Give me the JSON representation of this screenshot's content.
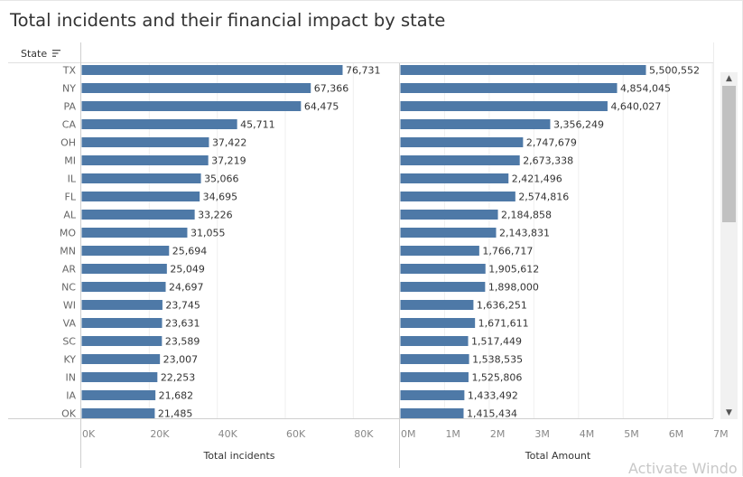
{
  "title": "Total incidents and their financial impact by state",
  "header": {
    "state_label": "State"
  },
  "chart_data": [
    {
      "type": "bar",
      "orientation": "horizontal",
      "categories": [
        "TX",
        "NY",
        "PA",
        "CA",
        "OH",
        "MI",
        "IL",
        "FL",
        "AL",
        "MO",
        "MN",
        "AR",
        "NC",
        "WI",
        "VA",
        "SC",
        "KY",
        "IN",
        "IA",
        "OK"
      ],
      "values": [
        76731,
        67366,
        64475,
        45711,
        37422,
        37219,
        35066,
        34695,
        33226,
        31055,
        25694,
        25049,
        24697,
        23745,
        23631,
        23589,
        23007,
        22253,
        21682,
        21485
      ],
      "value_labels": [
        "76,731",
        "67,366",
        "64,475",
        "45,711",
        "37,422",
        "37,219",
        "35,066",
        "34,695",
        "33,226",
        "31,055",
        "25,694",
        "25,049",
        "24,697",
        "23,745",
        "23,631",
        "23,589",
        "23,007",
        "22,253",
        "21,682",
        "21,485"
      ],
      "xlabel": "Total incidents",
      "xlim": [
        0,
        90000
      ],
      "ticks": [
        0,
        20000,
        40000,
        60000,
        80000
      ],
      "tick_labels": [
        "0K",
        "20K",
        "40K",
        "60K",
        "80K"
      ],
      "color": "#4e79a7",
      "grid": true
    },
    {
      "type": "bar",
      "orientation": "horizontal",
      "categories": [
        "TX",
        "NY",
        "PA",
        "CA",
        "OH",
        "MI",
        "IL",
        "FL",
        "AL",
        "MO",
        "MN",
        "AR",
        "NC",
        "WI",
        "VA",
        "SC",
        "KY",
        "IN",
        "IA",
        "OK"
      ],
      "values": [
        5500552,
        4854045,
        4640027,
        3356249,
        2747679,
        2673338,
        2421496,
        2574816,
        2184858,
        2143831,
        1766717,
        1905612,
        1898000,
        1636251,
        1671611,
        1517449,
        1538535,
        1525806,
        1433492,
        1415434
      ],
      "value_labels": [
        "5,500,552",
        "4,854,045",
        "4,640,027",
        "3,356,249",
        "2,747,679",
        "2,673,338",
        "2,421,496",
        "2,574,816",
        "2,184,858",
        "2,143,831",
        "1,766,717",
        "1,905,612",
        "1,898,000",
        "1,636,251",
        "1,671,611",
        "1,517,449",
        "1,538,535",
        "1,525,806",
        "1,433,492",
        "1,415,434"
      ],
      "xlabel": "Total Amount",
      "xlim": [
        0,
        7000000
      ],
      "ticks": [
        0,
        1000000,
        2000000,
        3000000,
        4000000,
        5000000,
        6000000,
        7000000
      ],
      "tick_labels": [
        "0M",
        "1M",
        "2M",
        "3M",
        "4M",
        "5M",
        "6M",
        "7M"
      ],
      "color": "#4e79a7",
      "grid": true
    }
  ],
  "scrollbar": {
    "up_icon": "▲",
    "down_icon": "▼"
  },
  "watermark": "Activate Windo"
}
